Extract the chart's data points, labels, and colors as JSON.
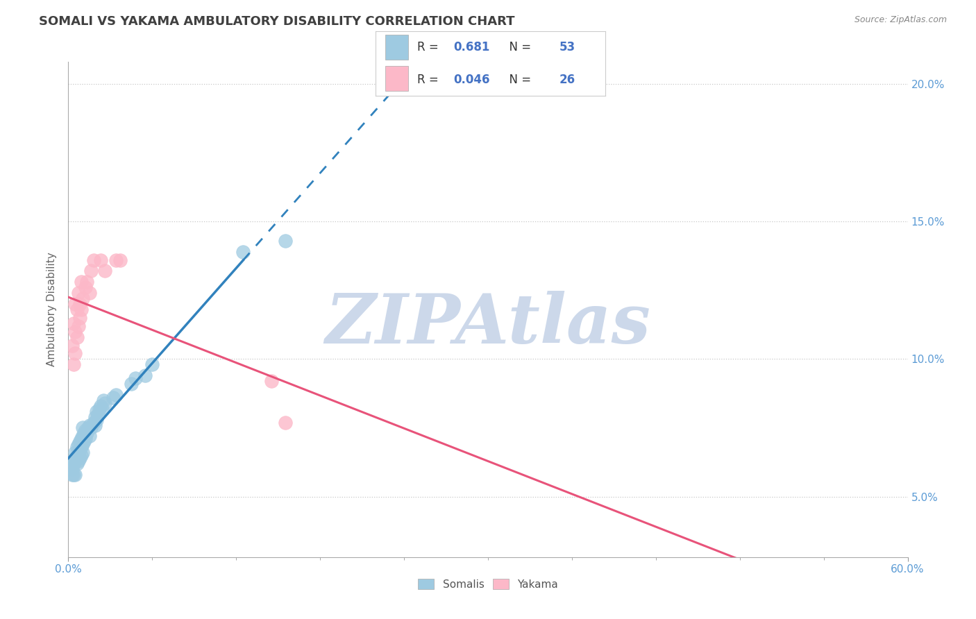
{
  "title": "SOMALI VS YAKAMA AMBULATORY DISABILITY CORRELATION CHART",
  "source": "Source: ZipAtlas.com",
  "ylabel": "Ambulatory Disability",
  "xlim": [
    0.0,
    0.6
  ],
  "ylim": [
    0.028,
    0.208
  ],
  "yticks": [
    0.05,
    0.1,
    0.15,
    0.2
  ],
  "ytick_labels": [
    "5.0%",
    "10.0%",
    "15.0%",
    "20.0%"
  ],
  "xtick_major": [
    0.0,
    0.6
  ],
  "xtick_major_labels": [
    "0.0%",
    "60.0%"
  ],
  "xtick_minor": [
    0.06,
    0.12,
    0.18,
    0.24,
    0.3,
    0.36,
    0.42,
    0.48,
    0.54
  ],
  "somali_R": 0.681,
  "somali_N": 53,
  "yakama_R": 0.046,
  "yakama_N": 26,
  "somali_color": "#9ecae1",
  "yakama_color": "#fcb8c8",
  "somali_line_color": "#3182bd",
  "yakama_line_color": "#e8537a",
  "background_color": "#ffffff",
  "grid_color": "#c8c8c8",
  "title_color": "#404040",
  "watermark": "ZIPAtlas",
  "watermark_color": "#ccd8ea",
  "legend_box_color": "#e8eef5",
  "somali_x": [
    0.002,
    0.003,
    0.003,
    0.003,
    0.004,
    0.004,
    0.005,
    0.005,
    0.005,
    0.006,
    0.006,
    0.006,
    0.007,
    0.007,
    0.007,
    0.008,
    0.008,
    0.008,
    0.009,
    0.009,
    0.009,
    0.01,
    0.01,
    0.01,
    0.01,
    0.011,
    0.011,
    0.012,
    0.012,
    0.013,
    0.014,
    0.015,
    0.015,
    0.016,
    0.018,
    0.019,
    0.019,
    0.02,
    0.02,
    0.021,
    0.022,
    0.023,
    0.024,
    0.025,
    0.026,
    0.032,
    0.034,
    0.045,
    0.048,
    0.055,
    0.06,
    0.125,
    0.155
  ],
  "somali_y": [
    0.062,
    0.058,
    0.06,
    0.063,
    0.058,
    0.062,
    0.058,
    0.063,
    0.066,
    0.062,
    0.065,
    0.068,
    0.063,
    0.066,
    0.069,
    0.064,
    0.067,
    0.07,
    0.065,
    0.068,
    0.071,
    0.066,
    0.069,
    0.072,
    0.075,
    0.07,
    0.073,
    0.071,
    0.074,
    0.073,
    0.075,
    0.072,
    0.076,
    0.075,
    0.077,
    0.076,
    0.079,
    0.078,
    0.081,
    0.08,
    0.082,
    0.083,
    0.082,
    0.085,
    0.084,
    0.086,
    0.087,
    0.091,
    0.093,
    0.094,
    0.098,
    0.139,
    0.143
  ],
  "yakama_x": [
    0.003,
    0.004,
    0.004,
    0.005,
    0.005,
    0.005,
    0.006,
    0.006,
    0.007,
    0.007,
    0.008,
    0.008,
    0.009,
    0.009,
    0.01,
    0.012,
    0.013,
    0.015,
    0.016,
    0.018,
    0.023,
    0.026,
    0.034,
    0.037,
    0.145,
    0.155
  ],
  "yakama_y": [
    0.105,
    0.098,
    0.113,
    0.102,
    0.11,
    0.12,
    0.108,
    0.118,
    0.112,
    0.124,
    0.115,
    0.12,
    0.118,
    0.128,
    0.122,
    0.126,
    0.128,
    0.124,
    0.132,
    0.136,
    0.136,
    0.132,
    0.136,
    0.136,
    0.092,
    0.077
  ]
}
